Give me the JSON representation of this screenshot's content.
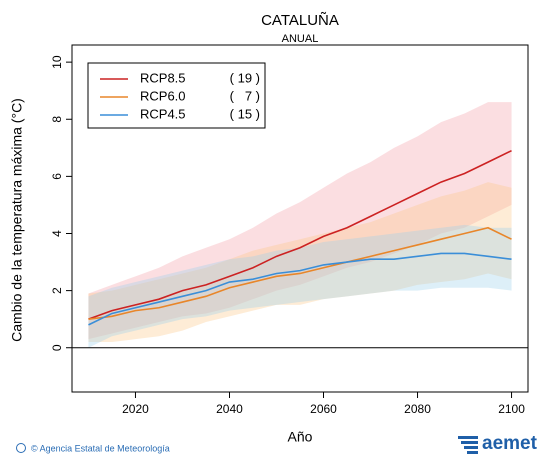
{
  "chart_data": {
    "type": "line",
    "title": "CATALUÑA",
    "subtitle": "ANUAL",
    "x_label": "Año",
    "y_label": "Cambio  de la temperatura máxima (°C)",
    "x": [
      2010,
      2015,
      2020,
      2025,
      2030,
      2035,
      2040,
      2045,
      2050,
      2055,
      2060,
      2065,
      2070,
      2075,
      2080,
      2085,
      2090,
      2095,
      2100
    ],
    "xlim": [
      2006.5,
      2103.5
    ],
    "xticks": [
      2020,
      2040,
      2060,
      2080,
      2100
    ],
    "ylim": [
      -1.55,
      10.6
    ],
    "yticks": [
      0,
      2,
      4,
      6,
      8,
      10
    ],
    "legend_position": "upper left",
    "series": [
      {
        "name": "RCP8.5",
        "count_label": "( 19 )",
        "color": "#cc2222",
        "band_color": "#f4a0a8",
        "values": [
          1.0,
          1.3,
          1.5,
          1.7,
          2.0,
          2.2,
          2.5,
          2.8,
          3.2,
          3.5,
          3.9,
          4.2,
          4.6,
          5.0,
          5.4,
          5.8,
          6.1,
          6.5,
          6.9
        ],
        "upper": [
          1.9,
          2.2,
          2.5,
          2.8,
          3.2,
          3.5,
          3.8,
          4.2,
          4.7,
          5.1,
          5.6,
          6.1,
          6.5,
          7.0,
          7.4,
          7.9,
          8.2,
          8.6,
          8.6
        ],
        "lower": [
          0.3,
          0.5,
          0.7,
          0.9,
          1.1,
          1.2,
          1.4,
          1.7,
          2.0,
          2.2,
          2.5,
          2.8,
          3.0,
          3.3,
          3.6,
          4.0,
          4.2,
          4.6,
          5.0
        ]
      },
      {
        "name": "RCP6.0",
        "count_label": "(   7 )",
        "color": "#e8862a",
        "band_color": "#fbc98a",
        "values": [
          1.0,
          1.1,
          1.3,
          1.4,
          1.6,
          1.8,
          2.1,
          2.3,
          2.5,
          2.6,
          2.8,
          3.0,
          3.2,
          3.4,
          3.6,
          3.8,
          4.0,
          4.2,
          3.8
        ],
        "upper": [
          1.9,
          2.0,
          2.2,
          2.4,
          2.6,
          2.8,
          3.1,
          3.4,
          3.6,
          3.8,
          4.0,
          4.2,
          4.4,
          4.7,
          5.0,
          5.3,
          5.5,
          5.8,
          5.6
        ],
        "lower": [
          0.2,
          0.2,
          0.3,
          0.4,
          0.6,
          0.9,
          1.1,
          1.3,
          1.5,
          1.5,
          1.7,
          1.8,
          1.9,
          2.0,
          2.2,
          2.3,
          2.4,
          2.6,
          2.4
        ]
      },
      {
        "name": "RCP4.5",
        "count_label": "( 15 )",
        "color": "#3a8ed8",
        "band_color": "#9fd0ea",
        "values": [
          0.8,
          1.2,
          1.4,
          1.6,
          1.8,
          2.0,
          2.3,
          2.4,
          2.6,
          2.7,
          2.9,
          3.0,
          3.1,
          3.1,
          3.2,
          3.3,
          3.3,
          3.2,
          3.1
        ],
        "upper": [
          1.8,
          2.1,
          2.3,
          2.5,
          2.7,
          2.9,
          3.1,
          3.2,
          3.4,
          3.5,
          3.7,
          3.8,
          3.9,
          4.0,
          4.1,
          4.2,
          4.3,
          4.2,
          4.2
        ],
        "lower": [
          0.0,
          0.4,
          0.6,
          0.8,
          1.0,
          1.1,
          1.3,
          1.4,
          1.5,
          1.6,
          1.7,
          1.8,
          1.9,
          2.0,
          2.0,
          2.1,
          2.1,
          2.1,
          2.0
        ]
      }
    ]
  },
  "footer": {
    "credit": "© Agencia Estatal de Meteorología",
    "logo": "aemet"
  }
}
